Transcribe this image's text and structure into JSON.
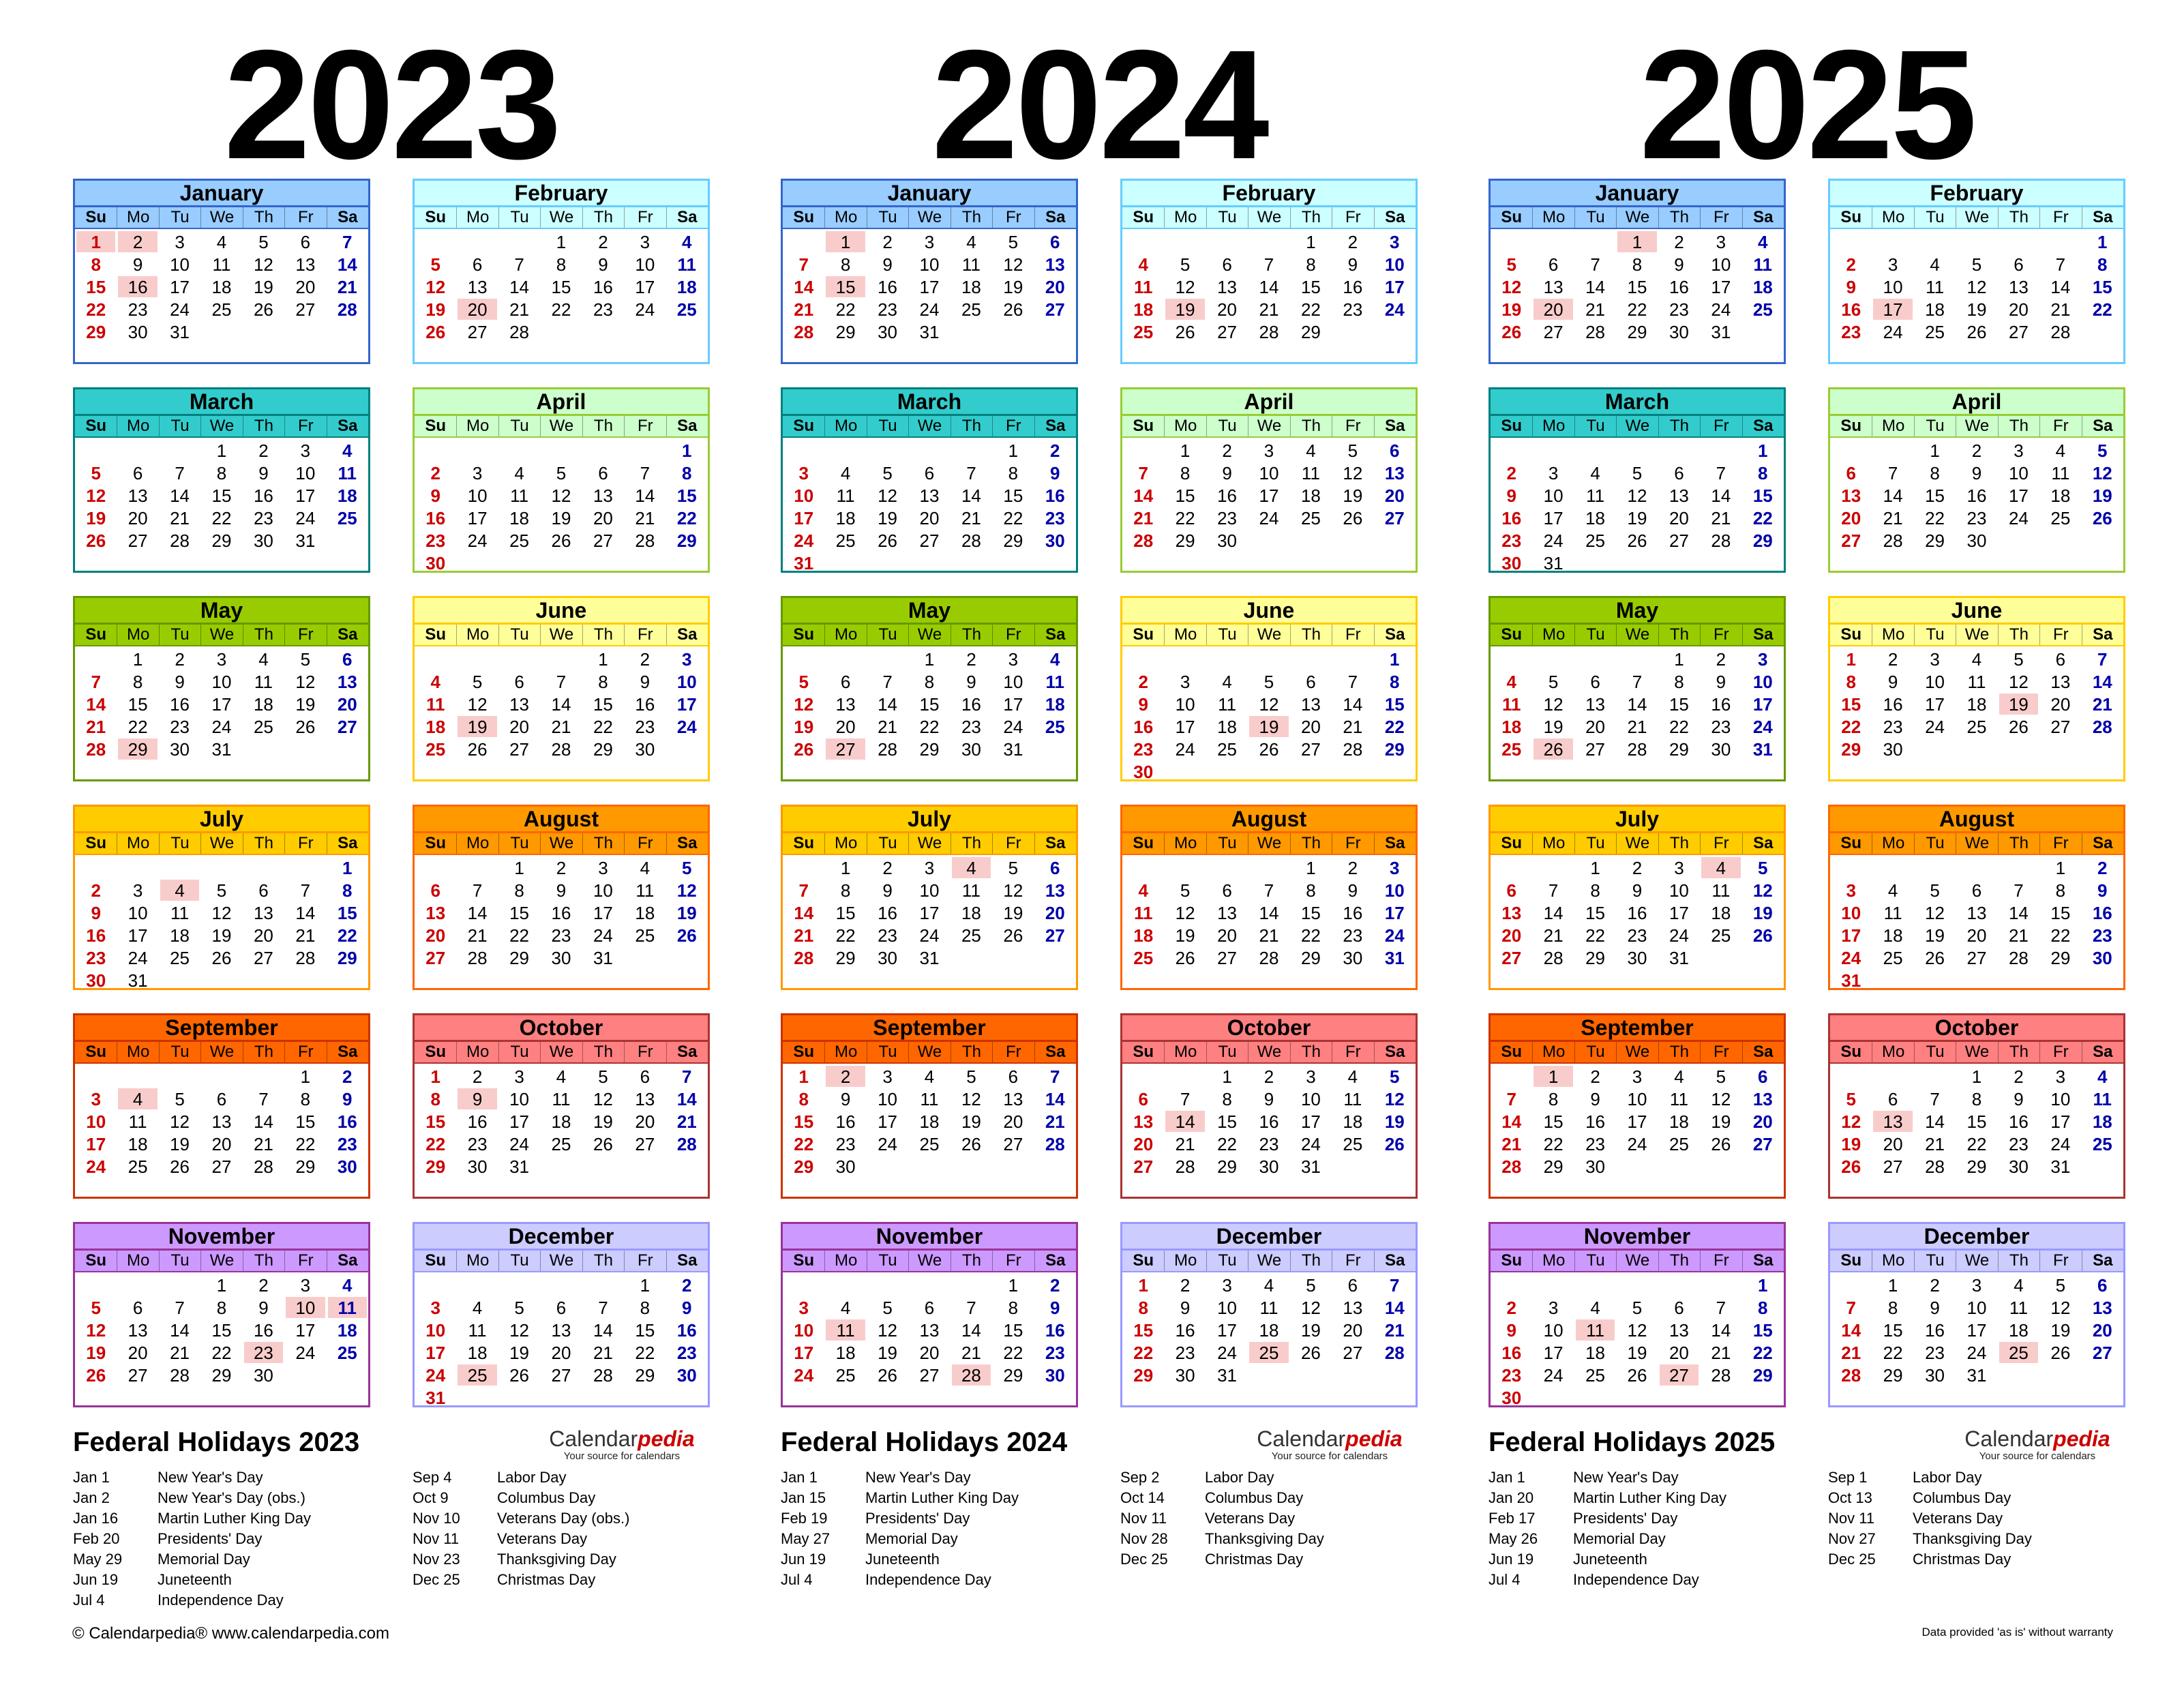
{
  "weekdays": [
    "Su",
    "Mo",
    "Tu",
    "We",
    "Th",
    "Fr",
    "Sa"
  ],
  "brand": {
    "name": "Calendar",
    "name_accent": "pedia",
    "tagline": "Your source for calendars"
  },
  "footer": {
    "left": "© Calendarpedia®   www.calendarpedia.com",
    "right": "Data provided 'as is' without warranty"
  },
  "month_colors": [
    "#99ccff",
    "#ccffff",
    "#33cccc",
    "#ccffcc",
    "#99cc00",
    "#ffff99",
    "#ffcc00",
    "#ff9900",
    "#ff6600",
    "#ff8080",
    "#cc99ff",
    "#ccccff"
  ],
  "month_borders": [
    "#3366cc",
    "#66ccff",
    "#008080",
    "#99cc33",
    "#669900",
    "#ffcc00",
    "#ff9900",
    "#ff6600",
    "#cc3300",
    "#aa3333",
    "#993399",
    "#9999ff"
  ],
  "years": [
    {
      "year": "2023",
      "months": [
        {
          "name": "January",
          "start": 0,
          "days": 31,
          "hol": [
            1,
            2,
            16
          ]
        },
        {
          "name": "February",
          "start": 3,
          "days": 28,
          "hol": [
            20
          ]
        },
        {
          "name": "March",
          "start": 3,
          "days": 31,
          "hol": []
        },
        {
          "name": "April",
          "start": 6,
          "days": 30,
          "hol": []
        },
        {
          "name": "May",
          "start": 1,
          "days": 31,
          "hol": [
            29
          ]
        },
        {
          "name": "June",
          "start": 4,
          "days": 30,
          "hol": [
            19
          ]
        },
        {
          "name": "July",
          "start": 6,
          "days": 31,
          "hol": [
            4
          ]
        },
        {
          "name": "August",
          "start": 2,
          "days": 31,
          "hol": []
        },
        {
          "name": "September",
          "start": 5,
          "days": 30,
          "hol": [
            4
          ]
        },
        {
          "name": "October",
          "start": 0,
          "days": 31,
          "hol": [
            9
          ]
        },
        {
          "name": "November",
          "start": 3,
          "days": 30,
          "hol": [
            10,
            11,
            23
          ]
        },
        {
          "name": "December",
          "start": 5,
          "days": 31,
          "hol": [
            25
          ]
        }
      ],
      "holidays_title": "Federal Holidays 2023",
      "holidays_left": [
        {
          "date": "Jan 1",
          "name": "New Year's Day"
        },
        {
          "date": "Jan 2",
          "name": "New Year's Day (obs.)"
        },
        {
          "date": "Jan 16",
          "name": "Martin Luther King Day"
        },
        {
          "date": "Feb 20",
          "name": "Presidents' Day"
        },
        {
          "date": "May 29",
          "name": "Memorial Day"
        },
        {
          "date": "Jun 19",
          "name": "Juneteenth"
        },
        {
          "date": "Jul 4",
          "name": "Independence Day"
        }
      ],
      "holidays_right": [
        {
          "date": "Sep 4",
          "name": "Labor Day"
        },
        {
          "date": "Oct 9",
          "name": "Columbus Day"
        },
        {
          "date": "Nov 10",
          "name": "Veterans Day (obs.)"
        },
        {
          "date": "Nov 11",
          "name": "Veterans Day"
        },
        {
          "date": "Nov 23",
          "name": "Thanksgiving Day"
        },
        {
          "date": "Dec 25",
          "name": "Christmas Day"
        }
      ]
    },
    {
      "year": "2024",
      "months": [
        {
          "name": "January",
          "start": 1,
          "days": 31,
          "hol": [
            1,
            15
          ]
        },
        {
          "name": "February",
          "start": 4,
          "days": 29,
          "hol": [
            19
          ]
        },
        {
          "name": "March",
          "start": 5,
          "days": 31,
          "hol": []
        },
        {
          "name": "April",
          "start": 1,
          "days": 30,
          "hol": []
        },
        {
          "name": "May",
          "start": 3,
          "days": 31,
          "hol": [
            27
          ]
        },
        {
          "name": "June",
          "start": 6,
          "days": 30,
          "hol": [
            19
          ]
        },
        {
          "name": "July",
          "start": 1,
          "days": 31,
          "hol": [
            4
          ]
        },
        {
          "name": "August",
          "start": 4,
          "days": 31,
          "hol": []
        },
        {
          "name": "September",
          "start": 0,
          "days": 30,
          "hol": [
            2
          ]
        },
        {
          "name": "October",
          "start": 2,
          "days": 31,
          "hol": [
            14
          ]
        },
        {
          "name": "November",
          "start": 5,
          "days": 30,
          "hol": [
            11,
            28
          ]
        },
        {
          "name": "December",
          "start": 0,
          "days": 31,
          "hol": [
            25
          ]
        }
      ],
      "holidays_title": "Federal Holidays 2024",
      "holidays_left": [
        {
          "date": "Jan 1",
          "name": "New Year's Day"
        },
        {
          "date": "Jan 15",
          "name": "Martin Luther King Day"
        },
        {
          "date": "Feb 19",
          "name": "Presidents' Day"
        },
        {
          "date": "May 27",
          "name": "Memorial Day"
        },
        {
          "date": "Jun 19",
          "name": "Juneteenth"
        },
        {
          "date": "Jul 4",
          "name": "Independence Day"
        }
      ],
      "holidays_right": [
        {
          "date": "Sep 2",
          "name": "Labor Day"
        },
        {
          "date": "Oct 14",
          "name": "Columbus Day"
        },
        {
          "date": "Nov 11",
          "name": "Veterans Day"
        },
        {
          "date": "Nov 28",
          "name": "Thanksgiving Day"
        },
        {
          "date": "Dec 25",
          "name": "Christmas Day"
        }
      ]
    },
    {
      "year": "2025",
      "months": [
        {
          "name": "January",
          "start": 3,
          "days": 31,
          "hol": [
            1,
            20
          ]
        },
        {
          "name": "February",
          "start": 6,
          "days": 28,
          "hol": [
            17
          ]
        },
        {
          "name": "March",
          "start": 6,
          "days": 31,
          "hol": []
        },
        {
          "name": "April",
          "start": 2,
          "days": 30,
          "hol": []
        },
        {
          "name": "May",
          "start": 4,
          "days": 31,
          "hol": [
            26
          ]
        },
        {
          "name": "June",
          "start": 0,
          "days": 30,
          "hol": [
            19
          ]
        },
        {
          "name": "July",
          "start": 2,
          "days": 31,
          "hol": [
            4
          ]
        },
        {
          "name": "August",
          "start": 5,
          "days": 31,
          "hol": []
        },
        {
          "name": "September",
          "start": 1,
          "days": 30,
          "hol": [
            1
          ]
        },
        {
          "name": "October",
          "start": 3,
          "days": 31,
          "hol": [
            13
          ]
        },
        {
          "name": "November",
          "start": 6,
          "days": 30,
          "hol": [
            11,
            27
          ]
        },
        {
          "name": "December",
          "start": 1,
          "days": 31,
          "hol": [
            25
          ]
        }
      ],
      "holidays_title": "Federal Holidays 2025",
      "holidays_left": [
        {
          "date": "Jan 1",
          "name": "New Year's Day"
        },
        {
          "date": "Jan 20",
          "name": "Martin Luther King Day"
        },
        {
          "date": "Feb 17",
          "name": "Presidents' Day"
        },
        {
          "date": "May 26",
          "name": "Memorial Day"
        },
        {
          "date": "Jun 19",
          "name": "Juneteenth"
        },
        {
          "date": "Jul 4",
          "name": "Independence Day"
        }
      ],
      "holidays_right": [
        {
          "date": "Sep 1",
          "name": "Labor Day"
        },
        {
          "date": "Oct 13",
          "name": "Columbus Day"
        },
        {
          "date": "Nov 11",
          "name": "Veterans Day"
        },
        {
          "date": "Nov 27",
          "name": "Thanksgiving Day"
        },
        {
          "date": "Dec 25",
          "name": "Christmas Day"
        }
      ]
    }
  ]
}
